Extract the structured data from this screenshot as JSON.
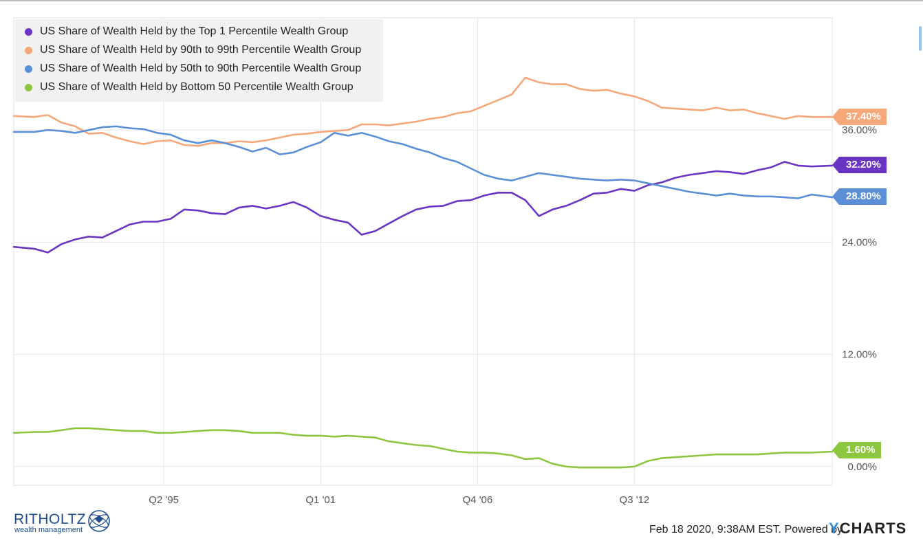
{
  "chart_data": {
    "type": "line",
    "title": "",
    "xlabel": "",
    "ylabel": "",
    "x_ticks": [
      "Q2 '95",
      "Q1 '01",
      "Q4 '06",
      "Q3 '12"
    ],
    "y_ticks": [
      "0.00%",
      "12.00%",
      "24.00%",
      "36.00%"
    ],
    "ylim": [
      -2.0,
      48.0
    ],
    "xlim": [
      1989.75,
      2019.75
    ],
    "legend_position": "top-left",
    "grid": true,
    "series": [
      {
        "name": "US Share of Wealth Held by the Top 1 Percentile Wealth Group",
        "color": "#6b35c4",
        "end_label": "32.20%",
        "points": [
          [
            1989.75,
            23.5
          ],
          [
            1990.5,
            23.3
          ],
          [
            1991.0,
            22.9
          ],
          [
            1991.5,
            23.8
          ],
          [
            1992.0,
            24.3
          ],
          [
            1992.5,
            24.6
          ],
          [
            1993.0,
            24.5
          ],
          [
            1993.5,
            25.2
          ],
          [
            1994.0,
            25.9
          ],
          [
            1994.5,
            26.2
          ],
          [
            1995.0,
            26.2
          ],
          [
            1995.5,
            26.5
          ],
          [
            1996.0,
            27.5
          ],
          [
            1996.5,
            27.4
          ],
          [
            1997.0,
            27.1
          ],
          [
            1997.5,
            27.0
          ],
          [
            1998.0,
            27.7
          ],
          [
            1998.5,
            27.9
          ],
          [
            1999.0,
            27.6
          ],
          [
            1999.5,
            27.9
          ],
          [
            2000.0,
            28.3
          ],
          [
            2000.5,
            27.7
          ],
          [
            2001.0,
            26.8
          ],
          [
            2001.5,
            26.4
          ],
          [
            2002.0,
            26.1
          ],
          [
            2002.5,
            24.8
          ],
          [
            2003.0,
            25.2
          ],
          [
            2003.5,
            26.0
          ],
          [
            2004.0,
            26.8
          ],
          [
            2004.5,
            27.5
          ],
          [
            2005.0,
            27.8
          ],
          [
            2005.5,
            27.9
          ],
          [
            2006.0,
            28.4
          ],
          [
            2006.5,
            28.5
          ],
          [
            2007.0,
            29.0
          ],
          [
            2007.5,
            29.3
          ],
          [
            2008.0,
            29.3
          ],
          [
            2008.5,
            28.5
          ],
          [
            2009.0,
            26.8
          ],
          [
            2009.5,
            27.5
          ],
          [
            2010.0,
            27.9
          ],
          [
            2010.5,
            28.5
          ],
          [
            2011.0,
            29.2
          ],
          [
            2011.5,
            29.3
          ],
          [
            2012.0,
            29.7
          ],
          [
            2012.5,
            29.5
          ],
          [
            2013.0,
            30.1
          ],
          [
            2013.5,
            30.4
          ],
          [
            2014.0,
            30.9
          ],
          [
            2014.5,
            31.2
          ],
          [
            2015.0,
            31.4
          ],
          [
            2015.5,
            31.6
          ],
          [
            2016.0,
            31.5
          ],
          [
            2016.5,
            31.3
          ],
          [
            2017.0,
            31.7
          ],
          [
            2017.5,
            32.0
          ],
          [
            2018.0,
            32.6
          ],
          [
            2018.5,
            32.2
          ],
          [
            2019.0,
            32.1
          ],
          [
            2019.75,
            32.2
          ]
        ]
      },
      {
        "name": "US Share of Wealth Held by 90th to 99th Percentile Wealth Group",
        "color": "#f5a87a",
        "end_label": "37.40%",
        "points": [
          [
            1989.75,
            37.5
          ],
          [
            1990.5,
            37.4
          ],
          [
            1991.0,
            37.6
          ],
          [
            1991.5,
            36.8
          ],
          [
            1992.0,
            36.4
          ],
          [
            1992.5,
            35.6
          ],
          [
            1993.0,
            35.7
          ],
          [
            1993.5,
            35.2
          ],
          [
            1994.0,
            34.8
          ],
          [
            1994.5,
            34.5
          ],
          [
            1995.0,
            34.8
          ],
          [
            1995.5,
            34.9
          ],
          [
            1996.0,
            34.4
          ],
          [
            1996.5,
            34.3
          ],
          [
            1997.0,
            34.6
          ],
          [
            1997.5,
            34.6
          ],
          [
            1998.0,
            34.8
          ],
          [
            1998.5,
            34.7
          ],
          [
            1999.0,
            34.9
          ],
          [
            1999.5,
            35.2
          ],
          [
            2000.0,
            35.5
          ],
          [
            2000.5,
            35.6
          ],
          [
            2001.0,
            35.8
          ],
          [
            2001.5,
            35.9
          ],
          [
            2002.0,
            36.0
          ],
          [
            2002.5,
            36.6
          ],
          [
            2003.0,
            36.6
          ],
          [
            2003.5,
            36.5
          ],
          [
            2004.0,
            36.7
          ],
          [
            2004.5,
            36.9
          ],
          [
            2005.0,
            37.2
          ],
          [
            2005.5,
            37.4
          ],
          [
            2006.0,
            37.8
          ],
          [
            2006.5,
            38.0
          ],
          [
            2007.0,
            38.6
          ],
          [
            2007.5,
            39.2
          ],
          [
            2008.0,
            39.8
          ],
          [
            2008.5,
            41.6
          ],
          [
            2009.0,
            41.1
          ],
          [
            2009.5,
            40.9
          ],
          [
            2010.0,
            40.9
          ],
          [
            2010.5,
            40.4
          ],
          [
            2011.0,
            40.2
          ],
          [
            2011.5,
            40.3
          ],
          [
            2012.0,
            39.9
          ],
          [
            2012.5,
            39.6
          ],
          [
            2013.0,
            39.1
          ],
          [
            2013.5,
            38.4
          ],
          [
            2014.0,
            38.3
          ],
          [
            2014.5,
            38.2
          ],
          [
            2015.0,
            38.1
          ],
          [
            2015.5,
            38.4
          ],
          [
            2016.0,
            38.1
          ],
          [
            2016.5,
            38.2
          ],
          [
            2017.0,
            37.8
          ],
          [
            2017.5,
            37.5
          ],
          [
            2018.0,
            37.2
          ],
          [
            2018.5,
            37.5
          ],
          [
            2019.0,
            37.4
          ],
          [
            2019.75,
            37.4
          ]
        ]
      },
      {
        "name": "US Share of Wealth Held by 50th to 90th Percentile Wealth Group",
        "color": "#5b8fd6",
        "end_label": "28.80%",
        "points": [
          [
            1989.75,
            35.8
          ],
          [
            1990.5,
            35.8
          ],
          [
            1991.0,
            36.0
          ],
          [
            1991.5,
            35.9
          ],
          [
            1992.0,
            35.7
          ],
          [
            1992.5,
            36.0
          ],
          [
            1993.0,
            36.3
          ],
          [
            1993.5,
            36.4
          ],
          [
            1994.0,
            36.2
          ],
          [
            1994.5,
            36.1
          ],
          [
            1995.0,
            35.7
          ],
          [
            1995.5,
            35.5
          ],
          [
            1996.0,
            34.9
          ],
          [
            1996.5,
            34.6
          ],
          [
            1997.0,
            34.9
          ],
          [
            1997.5,
            34.6
          ],
          [
            1998.0,
            34.2
          ],
          [
            1998.5,
            33.7
          ],
          [
            1999.0,
            34.1
          ],
          [
            1999.5,
            33.4
          ],
          [
            2000.0,
            33.6
          ],
          [
            2000.5,
            34.2
          ],
          [
            2001.0,
            34.7
          ],
          [
            2001.5,
            35.7
          ],
          [
            2002.0,
            35.4
          ],
          [
            2002.5,
            35.7
          ],
          [
            2003.0,
            35.3
          ],
          [
            2003.5,
            34.8
          ],
          [
            2004.0,
            34.5
          ],
          [
            2004.5,
            34.0
          ],
          [
            2005.0,
            33.6
          ],
          [
            2005.5,
            33.0
          ],
          [
            2006.0,
            32.6
          ],
          [
            2006.5,
            31.9
          ],
          [
            2007.0,
            31.2
          ],
          [
            2007.5,
            30.8
          ],
          [
            2008.0,
            30.6
          ],
          [
            2008.5,
            31.0
          ],
          [
            2009.0,
            31.4
          ],
          [
            2009.5,
            31.2
          ],
          [
            2010.0,
            31.0
          ],
          [
            2010.5,
            30.8
          ],
          [
            2011.0,
            30.7
          ],
          [
            2011.5,
            30.6
          ],
          [
            2012.0,
            30.7
          ],
          [
            2012.5,
            30.6
          ],
          [
            2013.0,
            30.3
          ],
          [
            2013.5,
            30.0
          ],
          [
            2014.0,
            29.7
          ],
          [
            2014.5,
            29.4
          ],
          [
            2015.0,
            29.2
          ],
          [
            2015.5,
            29.0
          ],
          [
            2016.0,
            29.2
          ],
          [
            2016.5,
            29.0
          ],
          [
            2017.0,
            28.9
          ],
          [
            2017.5,
            28.9
          ],
          [
            2018.0,
            28.8
          ],
          [
            2018.5,
            28.7
          ],
          [
            2019.0,
            29.1
          ],
          [
            2019.75,
            28.8
          ]
        ]
      },
      {
        "name": "US Share of Wealth Held by Bottom 50 Percentile Wealth Group",
        "color": "#8dc63f",
        "end_label": "1.60%",
        "points": [
          [
            1989.75,
            3.6
          ],
          [
            1990.5,
            3.7
          ],
          [
            1991.0,
            3.7
          ],
          [
            1991.5,
            3.9
          ],
          [
            1992.0,
            4.1
          ],
          [
            1992.5,
            4.1
          ],
          [
            1993.0,
            4.0
          ],
          [
            1993.5,
            3.9
          ],
          [
            1994.0,
            3.8
          ],
          [
            1994.5,
            3.8
          ],
          [
            1995.0,
            3.6
          ],
          [
            1995.5,
            3.6
          ],
          [
            1996.0,
            3.7
          ],
          [
            1996.5,
            3.8
          ],
          [
            1997.0,
            3.9
          ],
          [
            1997.5,
            3.9
          ],
          [
            1998.0,
            3.8
          ],
          [
            1998.5,
            3.6
          ],
          [
            1999.0,
            3.6
          ],
          [
            1999.5,
            3.6
          ],
          [
            2000.0,
            3.4
          ],
          [
            2000.5,
            3.3
          ],
          [
            2001.0,
            3.3
          ],
          [
            2001.5,
            3.2
          ],
          [
            2002.0,
            3.3
          ],
          [
            2002.5,
            3.2
          ],
          [
            2003.0,
            3.1
          ],
          [
            2003.5,
            2.7
          ],
          [
            2004.0,
            2.5
          ],
          [
            2004.5,
            2.3
          ],
          [
            2005.0,
            2.2
          ],
          [
            2005.5,
            1.9
          ],
          [
            2006.0,
            1.6
          ],
          [
            2006.5,
            1.5
          ],
          [
            2007.0,
            1.5
          ],
          [
            2007.5,
            1.4
          ],
          [
            2008.0,
            1.2
          ],
          [
            2008.5,
            0.8
          ],
          [
            2009.0,
            0.9
          ],
          [
            2009.5,
            0.3
          ],
          [
            2010.0,
            0.0
          ],
          [
            2010.5,
            -0.1
          ],
          [
            2011.0,
            -0.1
          ],
          [
            2011.5,
            -0.1
          ],
          [
            2012.0,
            -0.1
          ],
          [
            2012.5,
            0.0
          ],
          [
            2013.0,
            0.6
          ],
          [
            2013.5,
            0.9
          ],
          [
            2014.0,
            1.0
          ],
          [
            2014.5,
            1.1
          ],
          [
            2015.0,
            1.2
          ],
          [
            2015.5,
            1.3
          ],
          [
            2016.0,
            1.3
          ],
          [
            2016.5,
            1.3
          ],
          [
            2017.0,
            1.3
          ],
          [
            2017.5,
            1.4
          ],
          [
            2018.0,
            1.5
          ],
          [
            2018.5,
            1.5
          ],
          [
            2019.0,
            1.5
          ],
          [
            2019.75,
            1.6
          ]
        ]
      }
    ]
  },
  "footer": {
    "timestamp_text": "Feb 18 2020, 9:38AM EST. Powered by",
    "ycharts_logo": "YCHARTS",
    "ycharts_y_color": "#3a8fd9"
  },
  "watermark": {
    "brand_name": "RITHOLTZ",
    "brand_sub": "wealth management",
    "brand_color": "#1f4d8f"
  }
}
